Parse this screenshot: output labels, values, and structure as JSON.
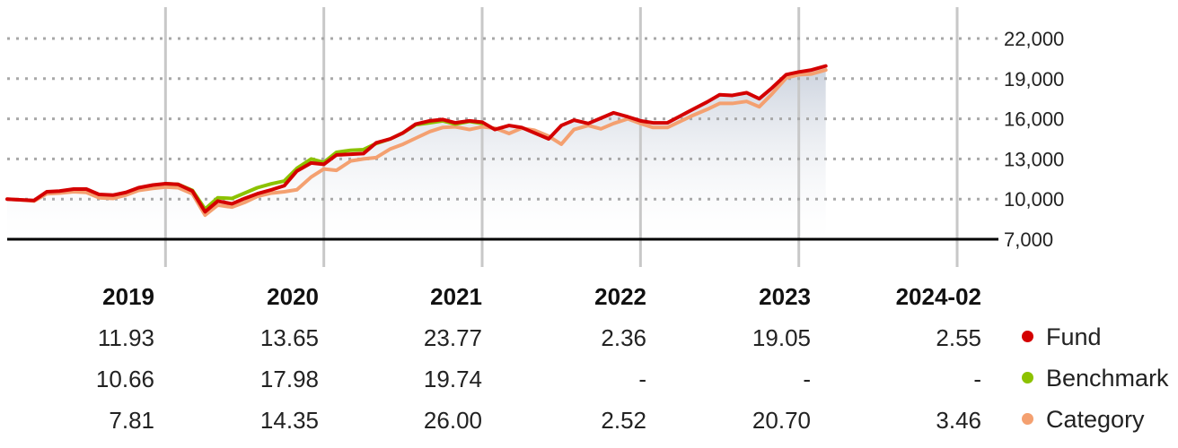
{
  "chart_data": {
    "type": "line",
    "y_axis": {
      "ticks": [
        "7,000",
        "10,000",
        "13,000",
        "16,000",
        "19,000",
        "22,000"
      ],
      "tick_values": [
        7000,
        10000,
        13000,
        16000,
        19000,
        22000
      ],
      "range": [
        5000,
        24500
      ],
      "position": "right",
      "grid": "dotted"
    },
    "x_range": [
      2018.0,
      2024.17
    ],
    "year_boundaries": [
      2019,
      2020,
      2021,
      2022,
      2023,
      2024
    ],
    "series": [
      {
        "name": "Fund",
        "color": "#d40000",
        "x": [
          2018.0,
          2018.08,
          2018.17,
          2018.25,
          2018.33,
          2018.42,
          2018.5,
          2018.58,
          2018.67,
          2018.75,
          2018.83,
          2018.92,
          2019.0,
          2019.08,
          2019.17,
          2019.25,
          2019.33,
          2019.42,
          2019.5,
          2019.58,
          2019.67,
          2019.75,
          2019.83,
          2019.92,
          2020.0,
          2020.08,
          2020.17,
          2020.25,
          2020.33,
          2020.42,
          2020.5,
          2020.58,
          2020.67,
          2020.75,
          2020.83,
          2020.92,
          2021.0,
          2021.08,
          2021.17,
          2021.25,
          2021.33,
          2021.42,
          2021.5,
          2021.58,
          2021.67,
          2021.75,
          2021.83,
          2021.92,
          2022.0,
          2022.08,
          2022.17,
          2022.25,
          2022.33,
          2022.42,
          2022.5,
          2022.58,
          2022.67,
          2022.75,
          2022.83,
          2022.92,
          2023.0,
          2023.08,
          2023.17
        ],
        "y": [
          10000,
          9950,
          9900,
          10550,
          10600,
          10750,
          10750,
          10350,
          10300,
          10500,
          10850,
          11050,
          11150,
          11100,
          10600,
          9050,
          9850,
          9650,
          10050,
          10400,
          10700,
          11000,
          12100,
          12700,
          12600,
          13300,
          13350,
          13400,
          14200,
          14500,
          14950,
          15600,
          15850,
          15950,
          15700,
          15850,
          15750,
          15200,
          15500,
          15350,
          14950,
          14500,
          15500,
          15900,
          15650,
          16050,
          16450,
          16150,
          15850,
          15700,
          15700,
          16200,
          16700,
          17250,
          17800,
          17750,
          17950,
          17500,
          18300,
          19300,
          19500,
          19650,
          19950
        ]
      },
      {
        "name": "Benchmark",
        "color": "#8cc200",
        "x": [
          2019.0,
          2019.08,
          2019.17,
          2019.25,
          2019.33,
          2019.42,
          2019.5,
          2019.58,
          2019.67,
          2019.75,
          2019.83,
          2019.92,
          2020.0,
          2020.08,
          2020.17,
          2020.25,
          2020.33,
          2020.42,
          2020.5,
          2020.58,
          2020.67,
          2020.75,
          2020.83,
          2020.92,
          2021.0
        ],
        "y": [
          11150,
          11100,
          10650,
          9250,
          10100,
          10050,
          10450,
          10850,
          11150,
          11350,
          12300,
          13000,
          12750,
          13500,
          13650,
          13700,
          14150,
          14500,
          14950,
          15550,
          15700,
          15850,
          15600,
          15800,
          15650
        ]
      },
      {
        "name": "Category",
        "color": "#f4a070",
        "x": [
          2018.0,
          2018.08,
          2018.17,
          2018.25,
          2018.33,
          2018.42,
          2018.5,
          2018.58,
          2018.67,
          2018.75,
          2018.83,
          2018.92,
          2019.0,
          2019.08,
          2019.17,
          2019.25,
          2019.33,
          2019.42,
          2019.5,
          2019.58,
          2019.67,
          2019.75,
          2019.83,
          2019.92,
          2020.0,
          2020.08,
          2020.17,
          2020.25,
          2020.33,
          2020.42,
          2020.5,
          2020.58,
          2020.67,
          2020.75,
          2020.83,
          2020.92,
          2021.0,
          2021.08,
          2021.17,
          2021.25,
          2021.33,
          2021.42,
          2021.5,
          2021.58,
          2021.67,
          2021.75,
          2021.83,
          2021.92,
          2022.0,
          2022.08,
          2022.17,
          2022.25,
          2022.33,
          2022.42,
          2022.5,
          2022.58,
          2022.67,
          2022.75,
          2022.83,
          2022.92,
          2023.0,
          2023.08,
          2023.17
        ],
        "y": [
          10000,
          9950,
          9850,
          10400,
          10450,
          10550,
          10500,
          10100,
          10050,
          10300,
          10650,
          10800,
          10900,
          10850,
          10400,
          8800,
          9550,
          9400,
          9750,
          10200,
          10450,
          10550,
          10700,
          11650,
          12250,
          12150,
          12850,
          13000,
          13100,
          13750,
          14100,
          14550,
          15050,
          15350,
          15400,
          15200,
          15400,
          15300,
          14900,
          15300,
          15150,
          14700,
          14100,
          15200,
          15500,
          15250,
          15650,
          16000,
          15650,
          15350,
          15350,
          15800,
          16250,
          16700,
          17150,
          17150,
          17300,
          16900,
          17850,
          19050,
          19300,
          19350,
          19650
        ]
      }
    ]
  },
  "table": {
    "years": [
      "2019",
      "2020",
      "2021",
      "2022",
      "2023",
      "2024-02"
    ],
    "rows": [
      {
        "name": "Fund",
        "color": "#d40000",
        "values": [
          "11.93",
          "13.65",
          "23.77",
          "2.36",
          "19.05",
          "2.55"
        ]
      },
      {
        "name": "Benchmark",
        "color": "#8cc200",
        "values": [
          "10.66",
          "17.98",
          "19.74",
          "-",
          "-",
          "-"
        ]
      },
      {
        "name": "Category",
        "color": "#f4a070",
        "values": [
          "7.81",
          "14.35",
          "26.00",
          "2.52",
          "20.70",
          "3.46"
        ]
      }
    ]
  }
}
